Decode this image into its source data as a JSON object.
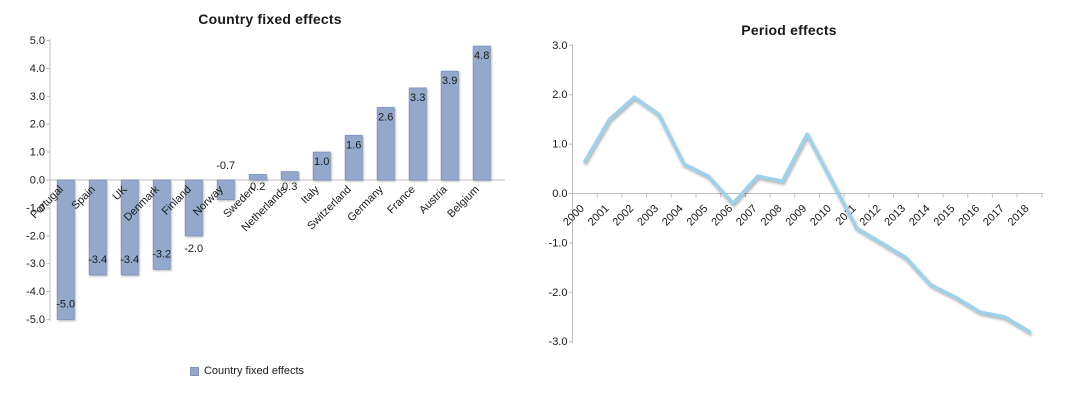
{
  "page": {
    "background_color": "#ffffff"
  },
  "chart_data": [
    {
      "id": "country-fixed-effects",
      "type": "bar",
      "title": "Country fixed effects",
      "categories": [
        "Portugal",
        "Spain",
        "UK",
        "Denmark",
        "Finland",
        "Norway",
        "Sweden",
        "Netherlands",
        "Italy",
        "Switzerland",
        "Germany",
        "France",
        "Austria",
        "Belgium"
      ],
      "values": [
        -5.0,
        -3.4,
        -3.4,
        -3.2,
        -2.0,
        -0.7,
        0.2,
        0.3,
        1.0,
        1.6,
        2.6,
        3.3,
        3.9,
        4.8
      ],
      "bar_labels": [
        "-5.0",
        "-3.4",
        "-3.4",
        "-3.2",
        "-2.0",
        "-0.7",
        "0.2",
        "0.3",
        "1.0",
        "1.6",
        "2.6",
        "3.3",
        "3.9",
        "4.8"
      ],
      "xlabel": "",
      "ylabel": "",
      "ylim": [
        -5.0,
        5.0
      ],
      "ytick_step": 1.0,
      "ytick_labels": [
        "5.0",
        "4.0",
        "3.0",
        "2.0",
        "1.0",
        "0.0",
        "-1.0",
        "-2.0",
        "-3.0",
        "-4.0",
        "-5.0"
      ],
      "grid": "zero-baseline-only",
      "xtick_rotation_deg": 45,
      "legend": {
        "position": "bottom-center",
        "swatch": "square",
        "label": "Country fixed effects"
      },
      "colors": {
        "bar_fill": "#92a9cc",
        "bar_border": "#7b93bd",
        "axis_line": "#bfbfbf",
        "text": "#1a1a1a"
      }
    },
    {
      "id": "period-effects",
      "type": "line",
      "title": "Period effects",
      "x": [
        "2000",
        "2001",
        "2002",
        "2003",
        "2004",
        "2005",
        "2006",
        "2007",
        "2008",
        "2009",
        "2010",
        "2011",
        "2012",
        "2013",
        "2014",
        "2015",
        "2016",
        "2017",
        "2018"
      ],
      "values": [
        0.65,
        1.5,
        1.95,
        1.6,
        0.6,
        0.35,
        -0.2,
        0.35,
        0.25,
        1.2,
        0.25,
        -0.7,
        -1.0,
        -1.3,
        -1.85,
        -2.1,
        -2.4,
        -2.5,
        -2.8
      ],
      "xlabel": "",
      "ylabel": "",
      "ylim": [
        -3.0,
        3.0
      ],
      "ytick_step": 1.0,
      "ytick_labels": [
        "3.0",
        "2.0",
        "1.0",
        "0.0",
        "-1.0",
        "-2.0",
        "-3.0"
      ],
      "grid": "zero-baseline-only",
      "xtick_rotation_deg": 45,
      "legend": "none",
      "colors": {
        "line": "#9cd2ee",
        "axis_line": "#bfbfbf",
        "text": "#1a1a1a"
      }
    }
  ]
}
